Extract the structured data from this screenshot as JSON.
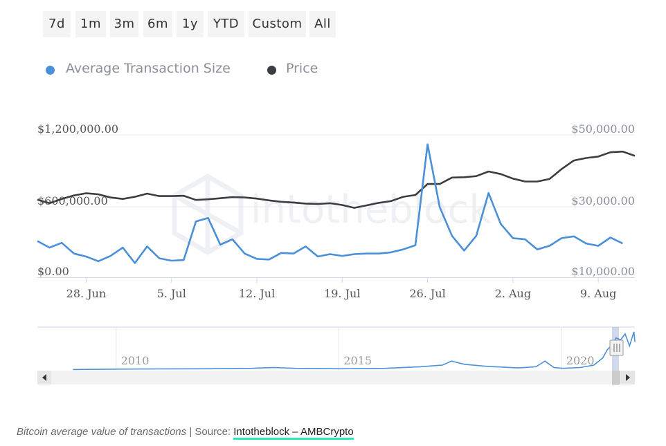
{
  "range_buttons": [
    "7d",
    "1m",
    "3m",
    "6m",
    "1y",
    "YTD",
    "Custom",
    "All"
  ],
  "legend": [
    {
      "label": "Average Transaction Size",
      "color": "#4a90d9"
    },
    {
      "label": "Price",
      "color": "#3a3d42"
    }
  ],
  "chart_data": {
    "type": "line",
    "x_start": "2020-06-24",
    "x_end": "2020-08-12",
    "x_tick_labels": [
      "28. Jun",
      "5. Jul",
      "12. Jul",
      "19. Jul",
      "26. Jul",
      "2. Aug",
      "9. Aug"
    ],
    "y_left": {
      "ticks": [
        "$1,200,000.00",
        "$600,000.00",
        "$0.00"
      ],
      "range": [
        0,
        1200000
      ]
    },
    "y_right": {
      "ticks": [
        "$50,000.00",
        "$30,000.00",
        "$10,000.00"
      ],
      "range": [
        10000,
        50000
      ]
    },
    "series": [
      {
        "name": "Average Transaction Size",
        "axis": "left",
        "color": "#4a90d9",
        "points": [
          [
            "2020-06-24",
            305000
          ],
          [
            "2020-06-25",
            250000
          ],
          [
            "2020-06-26",
            290000
          ],
          [
            "2020-06-27",
            200000
          ],
          [
            "2020-06-28",
            175000
          ],
          [
            "2020-06-29",
            135000
          ],
          [
            "2020-06-30",
            180000
          ],
          [
            "2020-07-01",
            250000
          ],
          [
            "2020-07-02",
            120000
          ],
          [
            "2020-07-03",
            260000
          ],
          [
            "2020-07-04",
            160000
          ],
          [
            "2020-07-05",
            140000
          ],
          [
            "2020-07-06",
            145000
          ],
          [
            "2020-07-07",
            470000
          ],
          [
            "2020-07-08",
            500000
          ],
          [
            "2020-07-09",
            275000
          ],
          [
            "2020-07-10",
            320000
          ],
          [
            "2020-07-11",
            200000
          ],
          [
            "2020-07-12",
            155000
          ],
          [
            "2020-07-13",
            150000
          ],
          [
            "2020-07-14",
            205000
          ],
          [
            "2020-07-15",
            200000
          ],
          [
            "2020-07-16",
            260000
          ],
          [
            "2020-07-17",
            175000
          ],
          [
            "2020-07-18",
            195000
          ],
          [
            "2020-07-19",
            180000
          ],
          [
            "2020-07-20",
            195000
          ],
          [
            "2020-07-21",
            200000
          ],
          [
            "2020-07-22",
            200000
          ],
          [
            "2020-07-23",
            210000
          ],
          [
            "2020-07-24",
            235000
          ],
          [
            "2020-07-25",
            270000
          ],
          [
            "2020-07-26",
            1120000
          ],
          [
            "2020-07-27",
            590000
          ],
          [
            "2020-07-28",
            350000
          ],
          [
            "2020-07-29",
            225000
          ],
          [
            "2020-07-30",
            350000
          ],
          [
            "2020-07-31",
            710000
          ],
          [
            "2020-08-01",
            450000
          ],
          [
            "2020-08-02",
            330000
          ],
          [
            "2020-08-03",
            320000
          ],
          [
            "2020-08-04",
            235000
          ],
          [
            "2020-08-05",
            265000
          ],
          [
            "2020-08-06",
            330000
          ],
          [
            "2020-08-07",
            345000
          ],
          [
            "2020-08-08",
            285000
          ],
          [
            "2020-08-09",
            265000
          ],
          [
            "2020-08-10",
            335000
          ],
          [
            "2020-08-11",
            285000
          ]
        ]
      },
      {
        "name": "Price",
        "axis": "right",
        "color": "#3a3d42",
        "points": [
          [
            "2020-06-24",
            31800
          ],
          [
            "2020-06-25",
            30800
          ],
          [
            "2020-06-26",
            32000
          ],
          [
            "2020-06-27",
            33000
          ],
          [
            "2020-06-28",
            33600
          ],
          [
            "2020-06-29",
            33300
          ],
          [
            "2020-06-30",
            32400
          ],
          [
            "2020-07-01",
            32000
          ],
          [
            "2020-07-02",
            32600
          ],
          [
            "2020-07-03",
            33500
          ],
          [
            "2020-07-04",
            32800
          ],
          [
            "2020-07-05",
            32800
          ],
          [
            "2020-07-06",
            32900
          ],
          [
            "2020-07-07",
            31700
          ],
          [
            "2020-07-08",
            31900
          ],
          [
            "2020-07-09",
            32200
          ],
          [
            "2020-07-10",
            32500
          ],
          [
            "2020-07-11",
            32400
          ],
          [
            "2020-07-12",
            32100
          ],
          [
            "2020-07-13",
            31600
          ],
          [
            "2020-07-14",
            31200
          ],
          [
            "2020-07-15",
            31000
          ],
          [
            "2020-07-16",
            30700
          ],
          [
            "2020-07-17",
            30600
          ],
          [
            "2020-07-18",
            30800
          ],
          [
            "2020-07-19",
            30300
          ],
          [
            "2020-07-20",
            29500
          ],
          [
            "2020-07-21",
            30200
          ],
          [
            "2020-07-22",
            30900
          ],
          [
            "2020-07-23",
            31400
          ],
          [
            "2020-07-24",
            32600
          ],
          [
            "2020-07-25",
            33100
          ],
          [
            "2020-07-26",
            36200
          ],
          [
            "2020-07-27",
            36200
          ],
          [
            "2020-07-28",
            38000
          ],
          [
            "2020-07-29",
            38100
          ],
          [
            "2020-07-30",
            38400
          ],
          [
            "2020-07-31",
            39700
          ],
          [
            "2020-08-01",
            39000
          ],
          [
            "2020-08-02",
            37700
          ],
          [
            "2020-08-03",
            36900
          ],
          [
            "2020-08-04",
            36900
          ],
          [
            "2020-08-05",
            37600
          ],
          [
            "2020-08-06",
            40400
          ],
          [
            "2020-08-07",
            42800
          ],
          [
            "2020-08-08",
            43500
          ],
          [
            "2020-08-09",
            43900
          ],
          [
            "2020-08-10",
            45100
          ],
          [
            "2020-08-11",
            45300
          ],
          [
            "2020-08-12",
            44100
          ]
        ]
      }
    ],
    "navigator": {
      "x_tick_labels": [
        "2010",
        "2015",
        "2020"
      ],
      "series_color": "#4a90d9",
      "points": [
        [
          2009.0,
          0.01
        ],
        [
          2010.0,
          0.02
        ],
        [
          2011.0,
          0.025
        ],
        [
          2012.0,
          0.03
        ],
        [
          2013.0,
          0.04
        ],
        [
          2013.5,
          0.06
        ],
        [
          2014.0,
          0.04
        ],
        [
          2015.0,
          0.03
        ],
        [
          2016.0,
          0.04
        ],
        [
          2016.8,
          0.08
        ],
        [
          2017.3,
          0.12
        ],
        [
          2017.5,
          0.22
        ],
        [
          2017.8,
          0.14
        ],
        [
          2018.3,
          0.09
        ],
        [
          2019.0,
          0.05
        ],
        [
          2019.4,
          0.08
        ],
        [
          2019.6,
          0.22
        ],
        [
          2019.8,
          0.06
        ],
        [
          2020.0,
          0.04
        ],
        [
          2020.4,
          0.06
        ],
        [
          2020.7,
          0.12
        ],
        [
          2020.9,
          0.3
        ],
        [
          2021.0,
          0.5
        ],
        [
          2021.1,
          0.62
        ],
        [
          2021.2,
          0.8
        ],
        [
          2021.3,
          0.75
        ],
        [
          2021.4,
          0.9
        ],
        [
          2021.5,
          0.6
        ],
        [
          2021.6,
          0.95
        ],
        [
          2021.62,
          0.7
        ]
      ],
      "x_range": [
        2008.2,
        2021.62
      ]
    }
  },
  "watermark": "intotheblock",
  "caption": {
    "italic_text": "Bitcoin average value of transactions",
    "separator": " | Source: ",
    "link_text": "Intotheblock – AMBCrypto"
  }
}
